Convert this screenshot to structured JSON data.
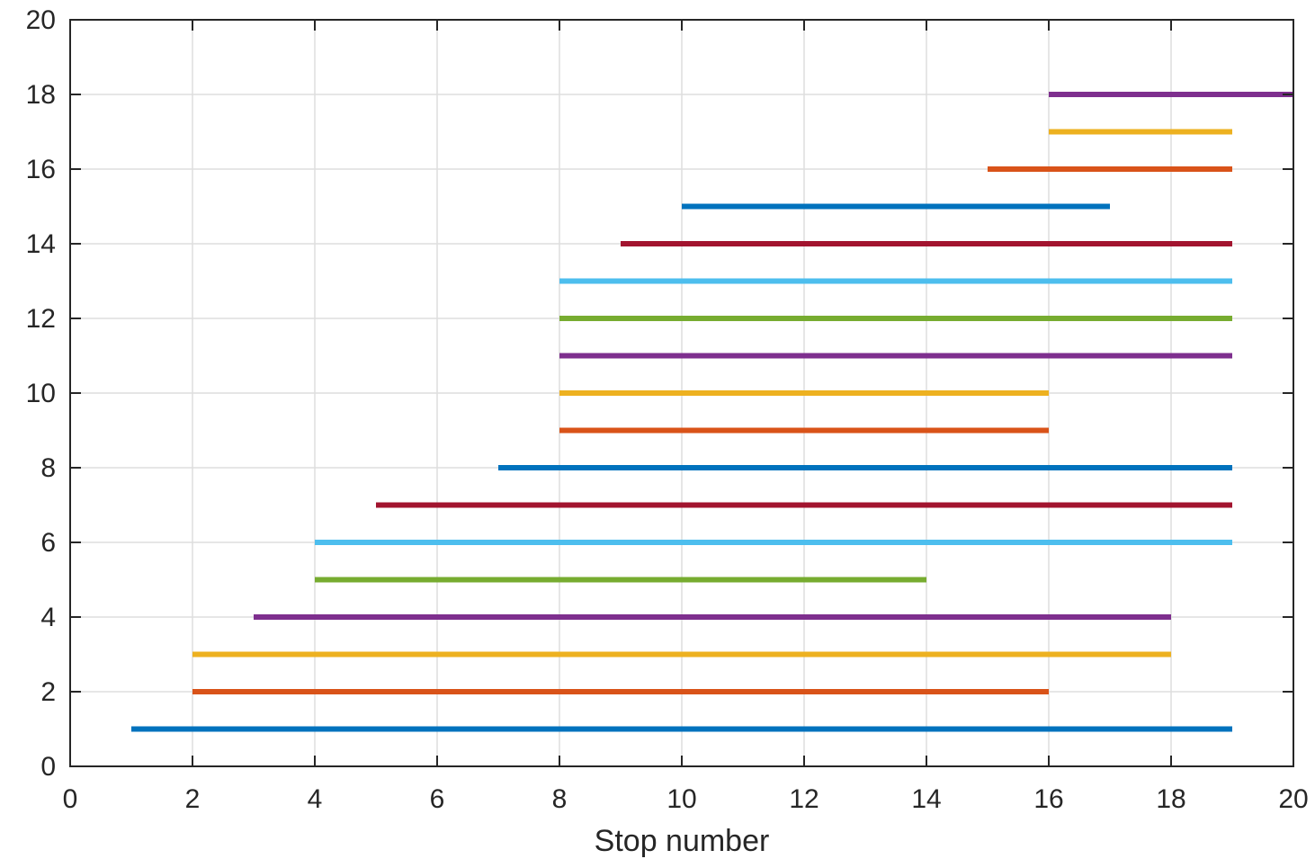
{
  "chart_data": {
    "type": "range-bar",
    "title": "",
    "xlabel": "Stop number",
    "ylabel": "",
    "xlim": [
      0,
      20
    ],
    "ylim": [
      0,
      20
    ],
    "xticks": [
      0,
      2,
      4,
      6,
      8,
      10,
      12,
      14,
      16,
      18,
      20
    ],
    "yticks": [
      0,
      2,
      4,
      6,
      8,
      10,
      12,
      14,
      16,
      18,
      20
    ],
    "grid": true,
    "segments": [
      {
        "y": 1,
        "x_start": 1,
        "x_end": 19,
        "color": "#0072BD"
      },
      {
        "y": 2,
        "x_start": 2,
        "x_end": 16,
        "color": "#D95319"
      },
      {
        "y": 3,
        "x_start": 2,
        "x_end": 18,
        "color": "#EDB120"
      },
      {
        "y": 4,
        "x_start": 3,
        "x_end": 18,
        "color": "#7E2F8E"
      },
      {
        "y": 5,
        "x_start": 4,
        "x_end": 14,
        "color": "#77AC30"
      },
      {
        "y": 6,
        "x_start": 4,
        "x_end": 19,
        "color": "#4DBEEE"
      },
      {
        "y": 7,
        "x_start": 5,
        "x_end": 19,
        "color": "#A2142F"
      },
      {
        "y": 8,
        "x_start": 7,
        "x_end": 19,
        "color": "#0072BD"
      },
      {
        "y": 9,
        "x_start": 8,
        "x_end": 16,
        "color": "#D95319"
      },
      {
        "y": 10,
        "x_start": 8,
        "x_end": 16,
        "color": "#EDB120"
      },
      {
        "y": 11,
        "x_start": 8,
        "x_end": 19,
        "color": "#7E2F8E"
      },
      {
        "y": 12,
        "x_start": 8,
        "x_end": 19,
        "color": "#77AC30"
      },
      {
        "y": 13,
        "x_start": 8,
        "x_end": 19,
        "color": "#4DBEEE"
      },
      {
        "y": 14,
        "x_start": 9,
        "x_end": 19,
        "color": "#A2142F"
      },
      {
        "y": 15,
        "x_start": 10,
        "x_end": 17,
        "color": "#0072BD"
      },
      {
        "y": 16,
        "x_start": 15,
        "x_end": 19,
        "color": "#D95319"
      },
      {
        "y": 17,
        "x_start": 16,
        "x_end": 19,
        "color": "#EDB120"
      },
      {
        "y": 18,
        "x_start": 16,
        "x_end": 20,
        "color": "#7E2F8E"
      }
    ]
  }
}
